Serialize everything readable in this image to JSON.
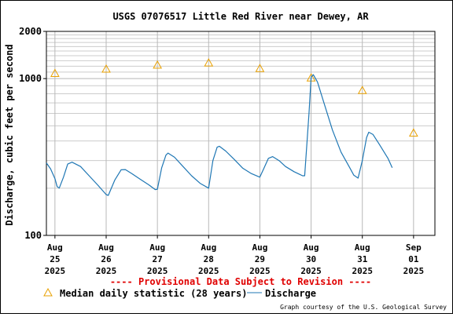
{
  "chart_data": {
    "type": "line",
    "title": "USGS 07076517 Little Red River near Dewey, AR",
    "ylabel": "Discharge, cubic feet per second",
    "xlabel": "",
    "y_scale": "log",
    "ylim": [
      100,
      2000
    ],
    "y_tick_labels": [
      "2000",
      "1000",
      "100"
    ],
    "x_range": [
      "2025-08-24 20:00",
      "2025-09-01 10:00"
    ],
    "x_ticks": [
      {
        "date": "2025-08-25",
        "label": [
          "Aug",
          "25",
          "2025"
        ]
      },
      {
        "date": "2025-08-26",
        "label": [
          "Aug",
          "26",
          "2025"
        ]
      },
      {
        "date": "2025-08-27",
        "label": [
          "Aug",
          "27",
          "2025"
        ]
      },
      {
        "date": "2025-08-28",
        "label": [
          "Aug",
          "28",
          "2025"
        ]
      },
      {
        "date": "2025-08-29",
        "label": [
          "Aug",
          "29",
          "2025"
        ]
      },
      {
        "date": "2025-08-30",
        "label": [
          "Aug",
          "30",
          "2025"
        ]
      },
      {
        "date": "2025-08-31",
        "label": [
          "Aug",
          "31",
          "2025"
        ]
      },
      {
        "date": "2025-09-01",
        "label": [
          "Sep",
          "01",
          "2025"
        ]
      }
    ],
    "grid": true,
    "series": [
      {
        "name": "Median daily statistic (28 years)",
        "type": "scatter",
        "marker": "triangle",
        "color": "#e8a000",
        "points": [
          {
            "x": "2025-08-25 00:00",
            "y": 1080
          },
          {
            "x": "2025-08-26 00:00",
            "y": 1150
          },
          {
            "x": "2025-08-27 00:00",
            "y": 1220
          },
          {
            "x": "2025-08-28 00:00",
            "y": 1260
          },
          {
            "x": "2025-08-29 00:00",
            "y": 1160
          },
          {
            "x": "2025-08-30 00:00",
            "y": 1010
          },
          {
            "x": "2025-08-31 00:00",
            "y": 840
          },
          {
            "x": "2025-09-01 00:00",
            "y": 450
          }
        ]
      },
      {
        "name": "Discharge",
        "type": "line",
        "color": "#1f77b4",
        "points": [
          {
            "x": "2025-08-24 20:00",
            "y": 290
          },
          {
            "x": "2025-08-24 22:00",
            "y": 265
          },
          {
            "x": "2025-08-25 00:00",
            "y": 230
          },
          {
            "x": "2025-08-25 01:00",
            "y": 205
          },
          {
            "x": "2025-08-25 02:00",
            "y": 200
          },
          {
            "x": "2025-08-25 04:00",
            "y": 235
          },
          {
            "x": "2025-08-25 06:00",
            "y": 285
          },
          {
            "x": "2025-08-25 08:00",
            "y": 293
          },
          {
            "x": "2025-08-25 12:00",
            "y": 275
          },
          {
            "x": "2025-08-25 16:00",
            "y": 240
          },
          {
            "x": "2025-08-25 20:00",
            "y": 210
          },
          {
            "x": "2025-08-26 00:00",
            "y": 182
          },
          {
            "x": "2025-08-26 01:00",
            "y": 180
          },
          {
            "x": "2025-08-26 04:00",
            "y": 225
          },
          {
            "x": "2025-08-26 07:00",
            "y": 262
          },
          {
            "x": "2025-08-26 09:00",
            "y": 263
          },
          {
            "x": "2025-08-26 12:00",
            "y": 248
          },
          {
            "x": "2025-08-26 16:00",
            "y": 228
          },
          {
            "x": "2025-08-26 20:00",
            "y": 210
          },
          {
            "x": "2025-08-26 23:00",
            "y": 196
          },
          {
            "x": "2025-08-27 00:00",
            "y": 197
          },
          {
            "x": "2025-08-27 02:00",
            "y": 270
          },
          {
            "x": "2025-08-27 04:00",
            "y": 325
          },
          {
            "x": "2025-08-27 05:00",
            "y": 335
          },
          {
            "x": "2025-08-27 08:00",
            "y": 315
          },
          {
            "x": "2025-08-27 12:00",
            "y": 275
          },
          {
            "x": "2025-08-27 16:00",
            "y": 240
          },
          {
            "x": "2025-08-27 20:00",
            "y": 215
          },
          {
            "x": "2025-08-28 00:00",
            "y": 200
          },
          {
            "x": "2025-08-28 02:00",
            "y": 300
          },
          {
            "x": "2025-08-28 04:00",
            "y": 365
          },
          {
            "x": "2025-08-28 05:00",
            "y": 370
          },
          {
            "x": "2025-08-28 08:00",
            "y": 345
          },
          {
            "x": "2025-08-28 12:00",
            "y": 305
          },
          {
            "x": "2025-08-28 16:00",
            "y": 268
          },
          {
            "x": "2025-08-28 20:00",
            "y": 248
          },
          {
            "x": "2025-08-29 00:00",
            "y": 235
          },
          {
            "x": "2025-08-29 02:00",
            "y": 270
          },
          {
            "x": "2025-08-29 04:00",
            "y": 310
          },
          {
            "x": "2025-08-29 06:00",
            "y": 318
          },
          {
            "x": "2025-08-29 09:00",
            "y": 300
          },
          {
            "x": "2025-08-29 12:00",
            "y": 275
          },
          {
            "x": "2025-08-29 16:00",
            "y": 255
          },
          {
            "x": "2025-08-29 20:00",
            "y": 240
          },
          {
            "x": "2025-08-29 21:00",
            "y": 240
          },
          {
            "x": "2025-08-29 23:00",
            "y": 600
          },
          {
            "x": "2025-08-30 00:00",
            "y": 1020
          },
          {
            "x": "2025-08-30 01:00",
            "y": 1060
          },
          {
            "x": "2025-08-30 03:00",
            "y": 950
          },
          {
            "x": "2025-08-30 06:00",
            "y": 700
          },
          {
            "x": "2025-08-30 10:00",
            "y": 470
          },
          {
            "x": "2025-08-30 14:00",
            "y": 340
          },
          {
            "x": "2025-08-30 18:00",
            "y": 272
          },
          {
            "x": "2025-08-30 20:00",
            "y": 242
          },
          {
            "x": "2025-08-30 22:00",
            "y": 232
          },
          {
            "x": "2025-08-31 00:00",
            "y": 300
          },
          {
            "x": "2025-08-31 02:00",
            "y": 420
          },
          {
            "x": "2025-08-31 03:00",
            "y": 455
          },
          {
            "x": "2025-08-31 05:00",
            "y": 440
          },
          {
            "x": "2025-08-31 08:00",
            "y": 380
          },
          {
            "x": "2025-08-31 12:00",
            "y": 310
          },
          {
            "x": "2025-08-31 14:00",
            "y": 270
          }
        ]
      }
    ],
    "provisional_note": "---- Provisional Data Subject to Revision ----",
    "credit": "Graph courtesy of the U.S. Geological Survey"
  }
}
